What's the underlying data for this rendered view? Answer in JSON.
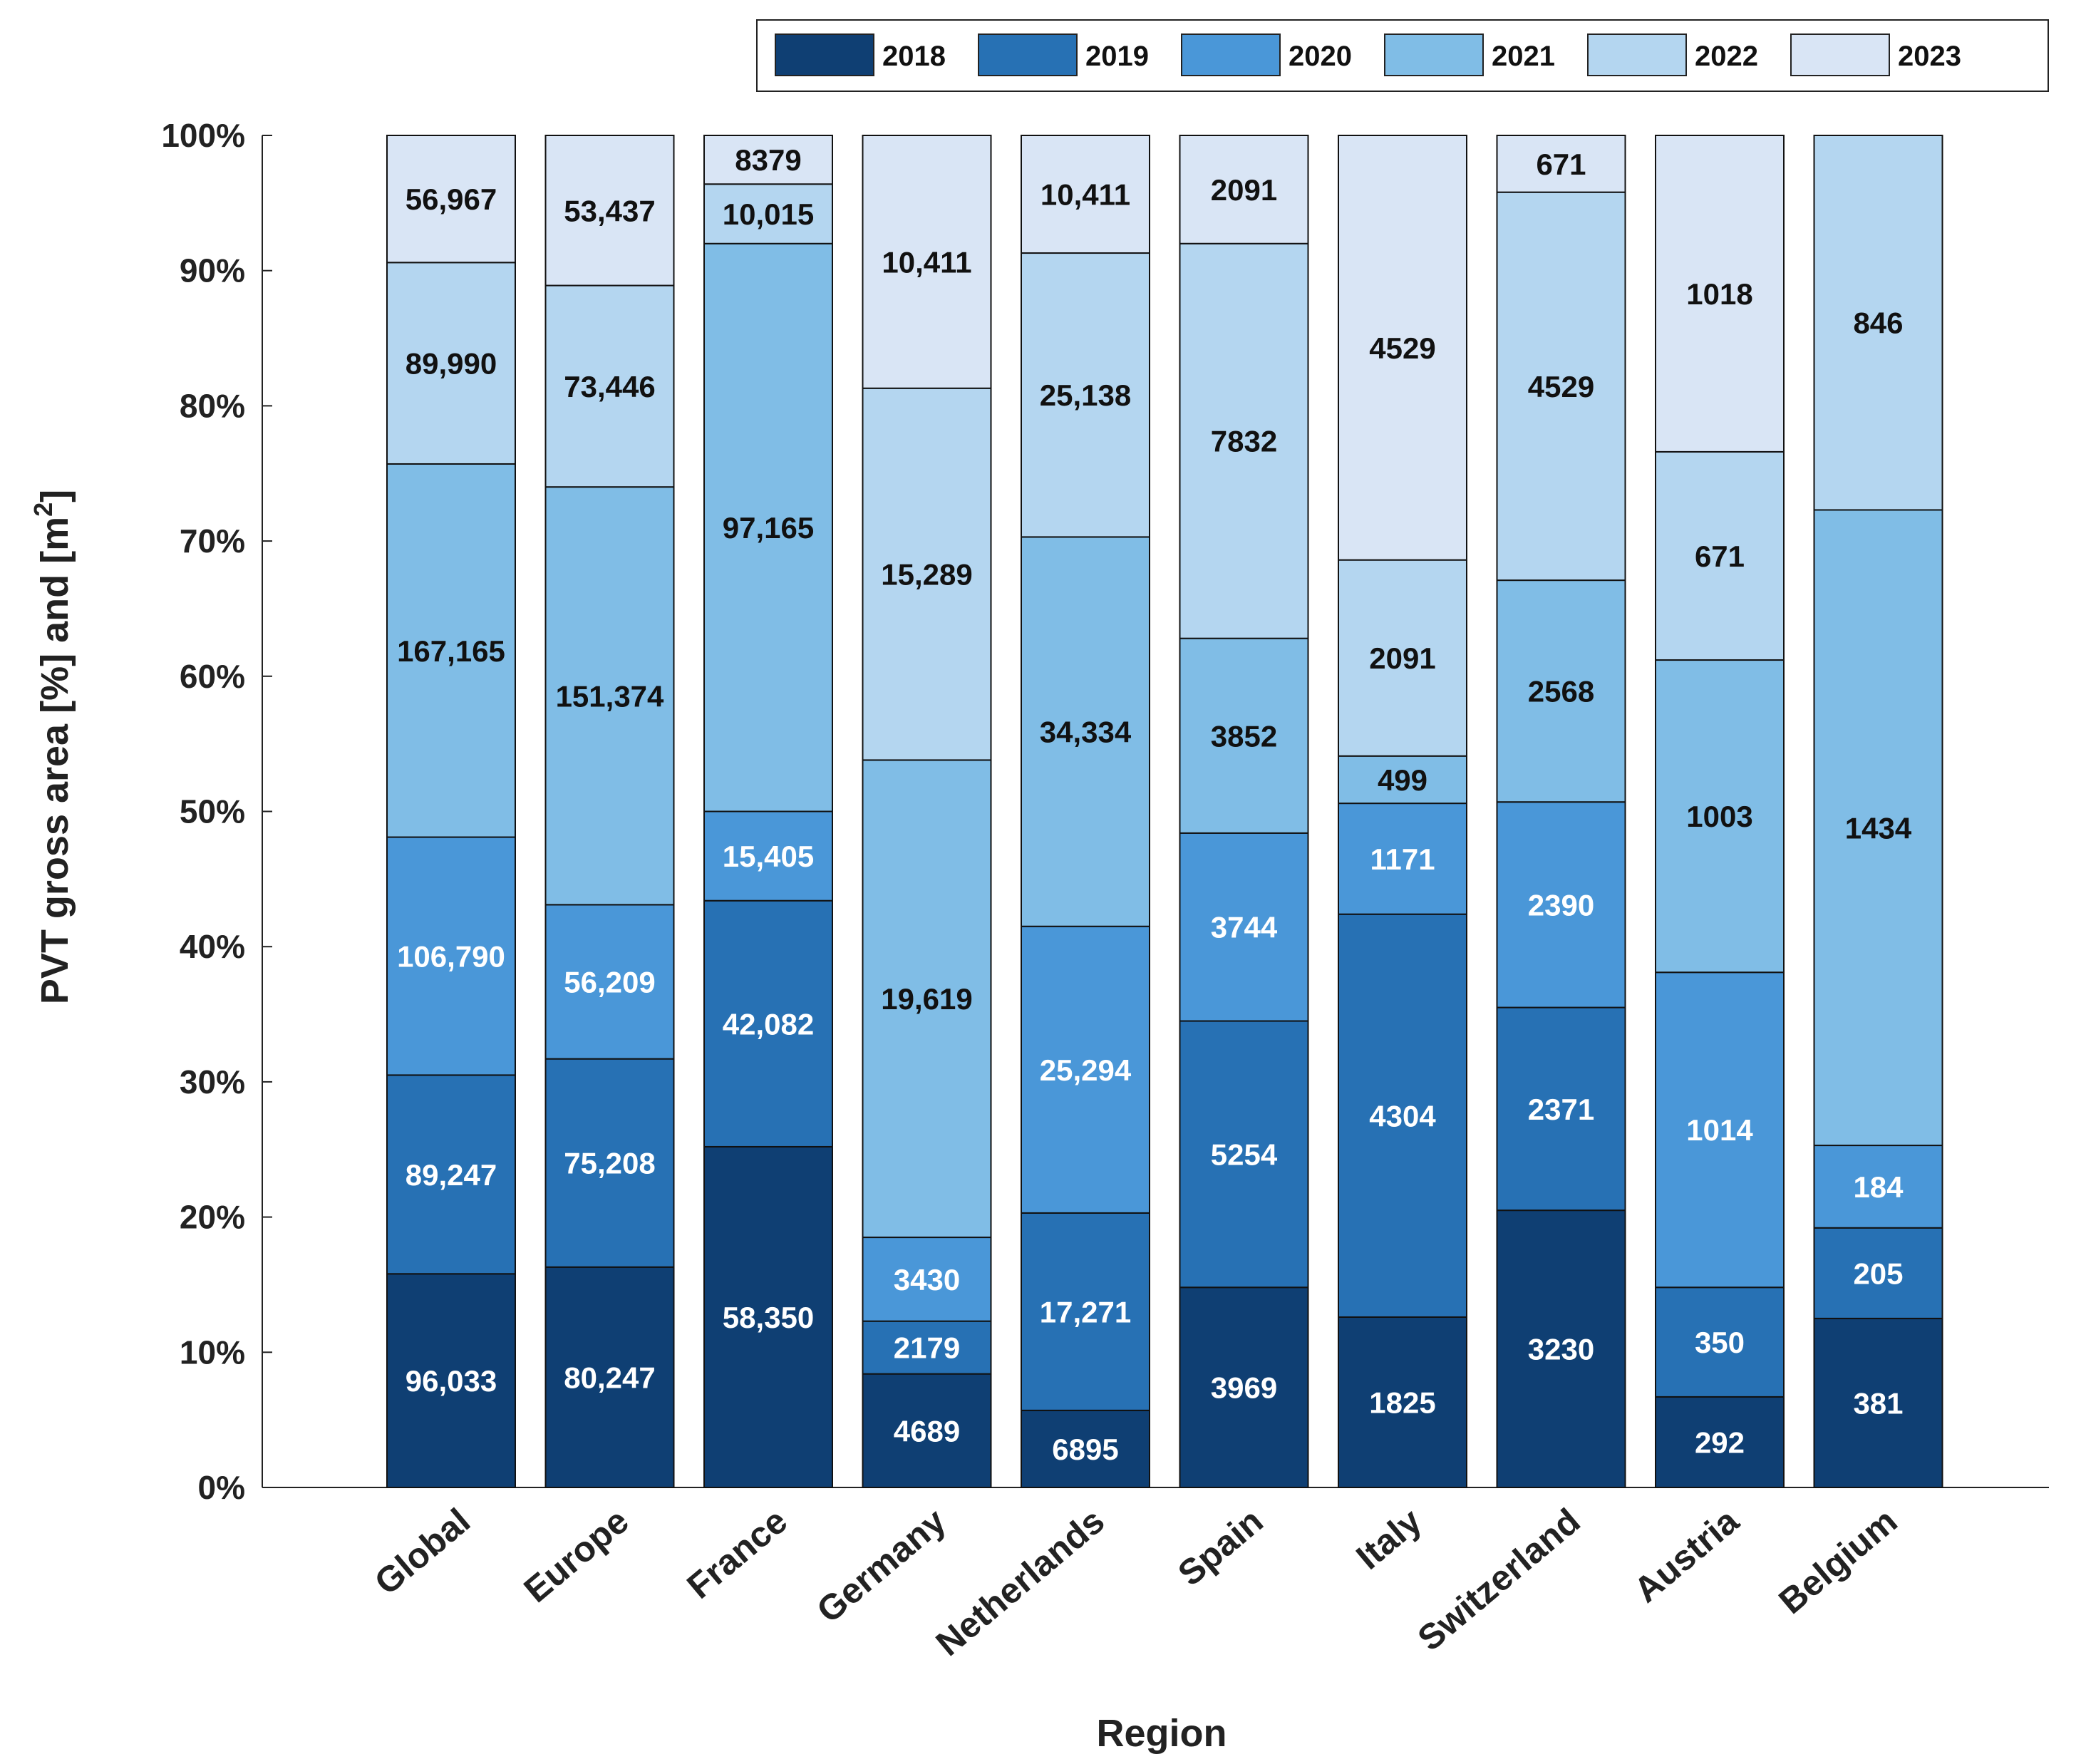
{
  "chart_data": {
    "type": "bar",
    "stacked": true,
    "normalized_percent": true,
    "title": "",
    "xlabel": "Region",
    "ylabel": "PVT gross area [%] and [m",
    "ylabel_superscript": "2",
    "ylabel_suffix": "]",
    "ylim": [
      0,
      100
    ],
    "yticks": [
      "0%",
      "10%",
      "20%",
      "30%",
      "40%",
      "50%",
      "60%",
      "70%",
      "80%",
      "90%",
      "100%"
    ],
    "legend_position": "top-right",
    "categories": [
      "Global",
      "Europe",
      "France",
      "Germany",
      "Netherlands",
      "Spain",
      "Italy",
      "Switzerland",
      "Austria",
      "Belgium"
    ],
    "series": [
      {
        "name": "2018",
        "color": "#0f3f73",
        "label_color": "#ffffff",
        "values": [
          15.8,
          16.3,
          25.2,
          8.4,
          5.7,
          14.8,
          12.6,
          20.5,
          6.7,
          12.5
        ],
        "labels": [
          "96,033",
          "80,247",
          "58,350",
          "4689",
          "6895",
          "3969",
          "1825",
          "3230",
          "292",
          "381"
        ]
      },
      {
        "name": "2019",
        "color": "#2771b4",
        "label_color": "#ffffff",
        "values": [
          14.7,
          15.4,
          18.2,
          3.9,
          14.6,
          19.7,
          29.8,
          15.0,
          8.1,
          6.7
        ],
        "labels": [
          "89,247",
          "75,208",
          "42,082",
          "2179",
          "17,271",
          "5254",
          "4304",
          "2371",
          "350",
          "205"
        ]
      },
      {
        "name": "2020",
        "color": "#4a97d8",
        "label_color": "#ffffff",
        "values": [
          17.6,
          11.4,
          6.6,
          6.2,
          21.2,
          13.9,
          8.2,
          15.2,
          23.3,
          6.1
        ],
        "labels": [
          "106,790",
          "56,209",
          "15,405",
          "3430",
          "25,294",
          "3744",
          "1171",
          "2390",
          "1014",
          "184"
        ]
      },
      {
        "name": "2021",
        "color": "#80bde6",
        "label_color": "#111111",
        "values": [
          27.6,
          30.9,
          42.0,
          35.3,
          28.8,
          14.4,
          3.5,
          16.4,
          23.1,
          47.0
        ],
        "labels": [
          "167,165",
          "151,374",
          "97,165",
          "19,619",
          "34,334",
          "3852",
          "499",
          "2568",
          "1003",
          "1434"
        ]
      },
      {
        "name": "2022",
        "color": "#b4d6f0",
        "label_color": "#111111",
        "values": [
          14.9,
          14.9,
          4.4,
          27.5,
          21.0,
          29.2,
          14.5,
          28.7,
          15.4,
          27.7
        ],
        "labels": [
          "89,990",
          "73,446",
          "10,015",
          "15,289",
          "25,138",
          "7832",
          "2091",
          "4529",
          "671",
          "846"
        ]
      },
      {
        "name": "2023",
        "color": "#d9e5f5",
        "label_color": "#111111",
        "values": [
          9.4,
          11.1,
          3.6,
          18.7,
          8.7,
          8.0,
          31.4,
          4.2,
          23.4,
          0
        ],
        "labels": [
          "56,967",
          "53,437",
          "8379",
          "10,411",
          "10,411",
          "2091",
          "4529",
          "671",
          "1018",
          ""
        ]
      }
    ]
  }
}
